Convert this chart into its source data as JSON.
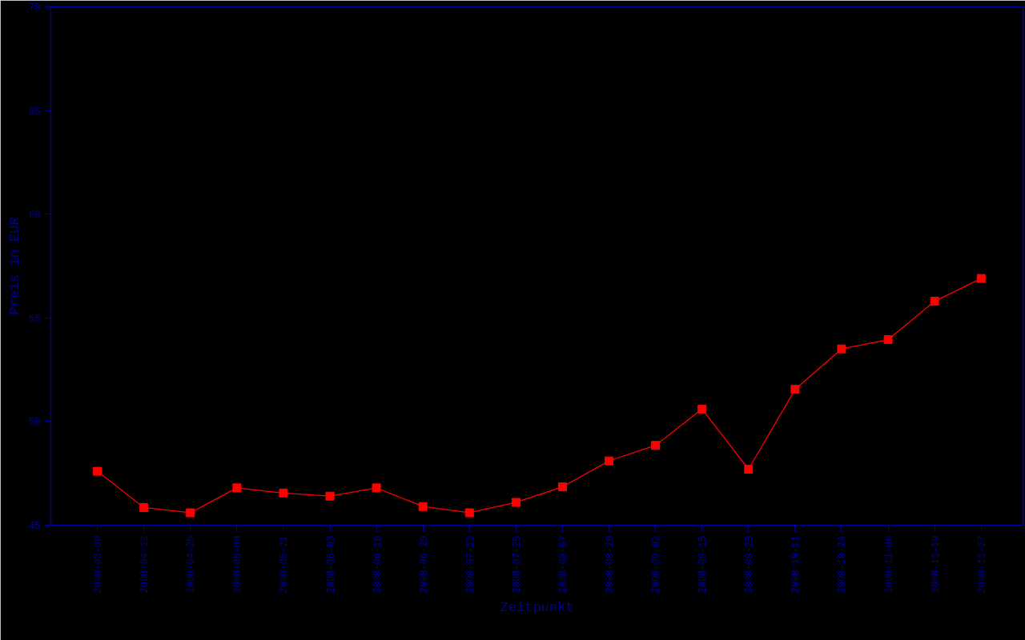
{
  "chart_data": {
    "type": "line",
    "xlabel": "Zeitpunkt",
    "ylabel": "Preis in EUR",
    "categories": [
      "2008-03-30",
      "2008-04-12",
      "2008-04-25",
      "2008-05-08",
      "2008-05-21",
      "2008-06-03",
      "2008-06-16",
      "2008-06-29",
      "2008-07-12",
      "2008-07-25",
      "2008-08-07",
      "2008-08-20",
      "2008-09-02",
      "2008-09-15",
      "2008-09-28",
      "2008-10-11",
      "2008-10-24",
      "2008-11-06",
      "2008-11-19",
      "2008-11-27"
    ],
    "series": [
      {
        "color": "#ff0000",
        "values": [
          47.6,
          45.85,
          45.6,
          46.8,
          46.55,
          46.4,
          46.8,
          45.9,
          45.6,
          46.1,
          46.85,
          48.1,
          48.85,
          50.6,
          47.7,
          51.55,
          53.5,
          53.95,
          55.8,
          56.9
        ]
      }
    ],
    "ylim": [
      45,
      70
    ],
    "yticks": [
      45,
      50,
      55,
      60,
      65,
      70
    ],
    "marker": "square",
    "line_style": "solid",
    "grid": false
  }
}
